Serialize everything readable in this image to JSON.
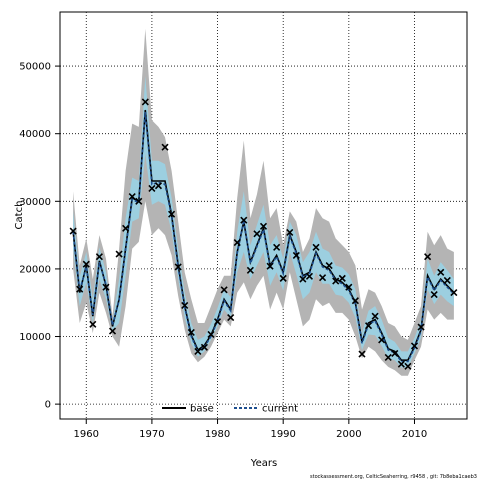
{
  "chart_data": {
    "type": "line",
    "xlabel": "Years",
    "ylabel": "Catch",
    "xlim": [
      1956,
      2018
    ],
    "ylim": [
      -2200,
      58000
    ],
    "xticks": [
      1960,
      1970,
      1980,
      1990,
      2000,
      2010
    ],
    "yticks": [
      0,
      10000,
      20000,
      30000,
      40000,
      50000
    ],
    "grid": true,
    "legend_position": "bottom-center",
    "colors": {
      "outer_band": "#b4b4b4",
      "inner_band": "#9ccfe0",
      "base_line": "#000000",
      "current_line": "#1e4f8f",
      "observed_marker": "#000000"
    },
    "x": [
      1958,
      1959,
      1960,
      1961,
      1962,
      1963,
      1964,
      1965,
      1966,
      1967,
      1968,
      1969,
      1970,
      1971,
      1972,
      1973,
      1974,
      1975,
      1976,
      1977,
      1978,
      1979,
      1980,
      1981,
      1982,
      1983,
      1984,
      1985,
      1986,
      1987,
      1988,
      1989,
      1990,
      1991,
      1992,
      1993,
      1994,
      1995,
      1996,
      1997,
      1998,
      1999,
      2000,
      2001,
      2002,
      2003,
      2004,
      2005,
      2006,
      2007,
      2008,
      2009,
      2010,
      2011,
      2012,
      2013,
      2014,
      2015,
      2016
    ],
    "series": [
      {
        "name": "base",
        "values": [
          25600,
          16500,
          20500,
          13000,
          21200,
          17500,
          11500,
          15500,
          23000,
          30500,
          30000,
          43500,
          33000,
          33000,
          33000,
          28000,
          20500,
          14500,
          10200,
          8000,
          8700,
          10200,
          12500,
          15500,
          14000,
          22500,
          27000,
          21000,
          23500,
          26000,
          20500,
          22000,
          19500,
          25000,
          22500,
          19000,
          19500,
          22500,
          20500,
          20000,
          18500,
          18000,
          17000,
          15000,
          9200,
          12000,
          12500,
          10500,
          8200,
          7800,
          6500,
          6500,
          8500,
          11000,
          19000,
          17000,
          18500,
          17500,
          16500
        ]
      },
      {
        "name": "current",
        "values": [
          25500,
          16800,
          20300,
          13200,
          21000,
          17700,
          11700,
          15300,
          22800,
          30300,
          29800,
          43200,
          32500,
          32800,
          32500,
          27800,
          20200,
          14300,
          10000,
          7800,
          8500,
          10000,
          12300,
          15300,
          13800,
          22300,
          27200,
          20800,
          23300,
          25800,
          20300,
          21800,
          19300,
          24800,
          22300,
          18800,
          19300,
          22300,
          20300,
          19800,
          18300,
          17800,
          16800,
          14800,
          9000,
          11800,
          12300,
          10300,
          8000,
          7600,
          6300,
          6300,
          8300,
          10800,
          18800,
          16800,
          18300,
          17300,
          16300
        ]
      },
      {
        "name": "observed",
        "values": [
          25600,
          17000,
          20700,
          11800,
          21800,
          17300,
          10800,
          22200,
          26000,
          30700,
          30000,
          44700,
          31900,
          32300,
          38000,
          28100,
          20300,
          14600,
          10600,
          7800,
          8400,
          10300,
          12200,
          16900,
          12800,
          23900,
          27200,
          19800,
          25200,
          26300,
          20400,
          23200,
          18600,
          25400,
          22000,
          18500,
          18900,
          23200,
          18700,
          20500,
          18200,
          18600,
          17300,
          15300,
          7400,
          11600,
          13000,
          9500,
          6900,
          7500,
          5900,
          5600,
          8600,
          11400,
          21800,
          16200,
          19500,
          18300,
          16500
        ]
      }
    ],
    "outer_band": {
      "lower": [
        20000,
        12000,
        15000,
        10500,
        16500,
        13500,
        10000,
        8500,
        14500,
        23000,
        24000,
        30000,
        25000,
        26000,
        25000,
        22000,
        16000,
        11000,
        7500,
        6200,
        7000,
        8500,
        10500,
        12500,
        11500,
        16500,
        18000,
        15500,
        17500,
        19000,
        14000,
        16500,
        14000,
        19500,
        15500,
        11500,
        12500,
        15500,
        14500,
        15000,
        13500,
        13500,
        12500,
        10000,
        6800,
        8500,
        7800,
        6500,
        5500,
        5000,
        4200,
        4200,
        6500,
        8500,
        14000,
        12500,
        13500,
        12500,
        12500
      ],
      "upper": [
        31500,
        20500,
        24500,
        18500,
        25000,
        21500,
        13000,
        23000,
        34500,
        41500,
        41000,
        55500,
        42000,
        41000,
        39500,
        34500,
        27000,
        19500,
        15500,
        12000,
        12000,
        14500,
        17000,
        19000,
        19000,
        30500,
        39000,
        27500,
        31000,
        36000,
        27500,
        29000,
        23500,
        28500,
        27000,
        22500,
        24500,
        29000,
        27500,
        27000,
        24500,
        23500,
        22500,
        20500,
        14000,
        17000,
        16500,
        14500,
        12000,
        11500,
        10000,
        9500,
        12000,
        14500,
        25500,
        23500,
        25000,
        23000,
        22500
      ]
    },
    "inner_band": {
      "lower": [
        23000,
        14500,
        18000,
        12000,
        18500,
        15500,
        10800,
        12000,
        19000,
        27000,
        27500,
        37000,
        29500,
        30000,
        29500,
        25500,
        18500,
        12800,
        9000,
        7000,
        7800,
        9500,
        11500,
        14000,
        12800,
        19500,
        22500,
        18500,
        20500,
        22500,
        17500,
        19500,
        16800,
        22500,
        19200,
        15500,
        16500,
        19500,
        17800,
        17800,
        16200,
        16000,
        15000,
        12800,
        8000,
        10300,
        10200,
        8600,
        6800,
        6500,
        5400,
        5400,
        7500,
        9800,
        17000,
        14800,
        16200,
        15200,
        14500
      ],
      "upper": [
        28500,
        18800,
        22500,
        15500,
        23200,
        19500,
        12200,
        18500,
        27500,
        33500,
        33000,
        48500,
        36000,
        36000,
        35500,
        30500,
        23000,
        16500,
        12000,
        9500,
        10000,
        11800,
        14200,
        17000,
        15800,
        25500,
        31500,
        23500,
        26500,
        29500,
        23500,
        25000,
        21500,
        27000,
        25000,
        21000,
        22500,
        25500,
        23000,
        22500,
        20500,
        20200,
        19200,
        17000,
        10500,
        13800,
        14500,
        12500,
        9800,
        9200,
        7800,
        7800,
        9800,
        12500,
        21500,
        19000,
        21000,
        19800,
        18500
      ]
    },
    "footer": "stockassessment.org,  CelticSeaherring,  r9458  ,  git:  7b8eba1caeb3"
  }
}
